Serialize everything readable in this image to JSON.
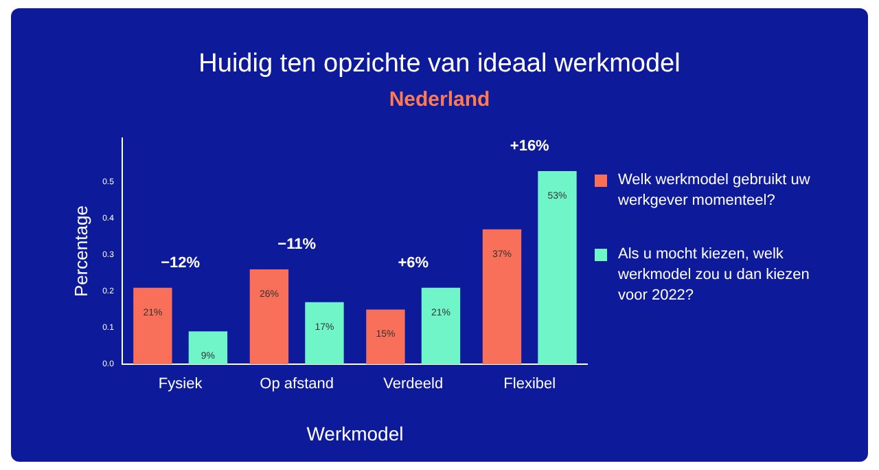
{
  "chart_data": {
    "type": "bar",
    "title": "Huidig ten opzichte van ideaal werkmodel",
    "subtitle": "Nederland",
    "xlabel": "Werkmodel",
    "ylabel": "Percentage",
    "categories": [
      "Fysiek",
      "Op afstand",
      "Verdeeld",
      "Flexibel"
    ],
    "series": [
      {
        "name": "Welk werkmodel gebruikt uw werkgever momenteel?",
        "color": "#f8705a",
        "values": [
          0.21,
          0.26,
          0.15,
          0.37
        ],
        "value_labels": [
          "21%",
          "26%",
          "15%",
          "37%"
        ]
      },
      {
        "name": "Als u mocht kiezen, welk werkmodel zou u dan kiezen voor 2022?",
        "color": "#6ff5c8",
        "values": [
          0.09,
          0.17,
          0.21,
          0.53
        ],
        "value_labels": [
          "9%",
          "17%",
          "21%",
          "53%"
        ]
      }
    ],
    "ylim": [
      0,
      0.62
    ],
    "yticks": [
      {
        "value": 0,
        "label": "0.0"
      },
      0.1,
      0.2,
      0.3,
      0.4,
      0.5
    ],
    "annotations": [
      "−12%",
      "−11%",
      "+6%",
      "+16%"
    ],
    "grid": false,
    "legend": "right"
  }
}
